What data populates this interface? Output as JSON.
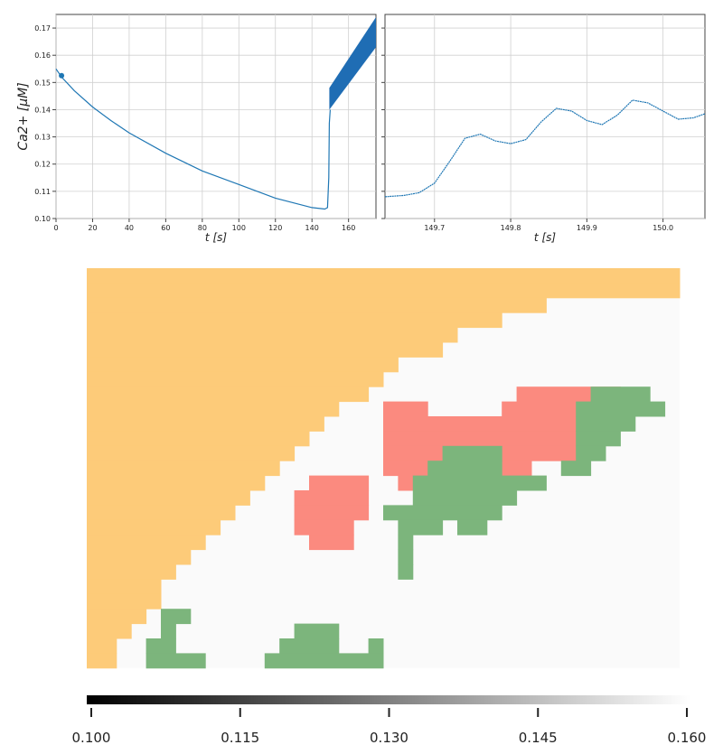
{
  "chart_data": [
    {
      "type": "line",
      "panel": "left",
      "xlabel": "t [s]",
      "ylabel": "Ca2+ [μM]",
      "xlim": [
        0,
        175
      ],
      "ylim": [
        0.1,
        0.175
      ],
      "xticks": [
        "0",
        "20",
        "40",
        "60",
        "80",
        "100",
        "120",
        "140",
        "160"
      ],
      "yticks": [
        "0.10",
        "0.11",
        "0.12",
        "0.13",
        "0.14",
        "0.15",
        "0.16",
        "0.17"
      ],
      "grid": true,
      "color": "#1f77b4",
      "x": [
        0,
        3,
        10,
        20,
        30,
        40,
        60,
        80,
        100,
        120,
        140,
        147,
        148.5,
        149.2,
        149.5,
        150
      ],
      "y": [
        0.155,
        0.152,
        0.147,
        0.141,
        0.136,
        0.1315,
        0.124,
        0.1175,
        0.1125,
        0.1075,
        0.104,
        0.1035,
        0.104,
        0.115,
        0.135,
        0.14
      ],
      "oscillation_band": {
        "x": [
          149.5,
          175
        ],
        "lower": [
          0.14,
          0.163
        ],
        "upper": [
          0.148,
          0.174
        ]
      },
      "marker": {
        "x": 3,
        "y": 0.1525
      }
    },
    {
      "type": "line",
      "panel": "right",
      "xlabel": "t [s]",
      "xlim": [
        149.635,
        150.055
      ],
      "ylim": [
        0.1,
        0.175
      ],
      "xticks": [
        "149.7",
        "149.8",
        "149.9",
        "150.0"
      ],
      "grid": true,
      "color": "#1f77b4",
      "x": [
        149.635,
        149.66,
        149.68,
        149.7,
        149.72,
        149.74,
        149.76,
        149.78,
        149.8,
        149.82,
        149.84,
        149.86,
        149.88,
        149.9,
        149.92,
        149.94,
        149.96,
        149.98,
        150.0,
        150.02,
        150.04,
        150.055
      ],
      "y": [
        0.108,
        0.1085,
        0.1095,
        0.113,
        0.121,
        0.1295,
        0.131,
        0.1285,
        0.1275,
        0.129,
        0.1355,
        0.1405,
        0.1395,
        0.136,
        0.1345,
        0.138,
        0.1435,
        0.1425,
        0.1395,
        0.1365,
        0.137,
        0.1385
      ]
    },
    {
      "type": "heatmap",
      "panel": "grid-map",
      "cols": 40,
      "rows": 27,
      "colors": {
        "orange": "#fdcb79",
        "red": "#fb8a7f",
        "green": "#7cb57c",
        "background": "#fafafa"
      },
      "orange_boundary_cols": [
        40,
        40,
        31,
        28,
        25,
        24,
        21,
        20,
        19,
        17,
        16,
        15,
        14,
        13,
        12,
        11,
        10,
        9,
        8,
        7,
        6,
        5,
        5,
        4,
        3,
        2,
        2
      ],
      "red_regions": [
        [
          [
            8,
            29,
            35
          ],
          [
            9,
            20,
            22
          ],
          [
            9,
            28,
            33
          ],
          [
            10,
            20,
            32
          ],
          [
            11,
            20,
            32
          ],
          [
            12,
            20,
            32
          ],
          [
            13,
            20,
            29
          ],
          [
            14,
            21,
            25
          ]
        ],
        [
          [
            14,
            15,
            18
          ],
          [
            15,
            14,
            18
          ],
          [
            16,
            14,
            18
          ],
          [
            17,
            14,
            17
          ],
          [
            18,
            15,
            17
          ]
        ]
      ],
      "green_regions": [
        [
          [
            8,
            34,
            37
          ],
          [
            9,
            33,
            38
          ],
          [
            10,
            33,
            36
          ],
          [
            11,
            33,
            35
          ],
          [
            12,
            33,
            34
          ],
          [
            13,
            32,
            33
          ]
        ],
        [
          [
            12,
            24,
            27
          ],
          [
            13,
            23,
            27
          ],
          [
            14,
            22,
            30
          ],
          [
            15,
            22,
            28
          ],
          [
            16,
            20,
            27
          ],
          [
            17,
            21,
            23
          ],
          [
            17,
            25,
            26
          ],
          [
            18,
            21,
            21
          ],
          [
            19,
            21,
            21
          ],
          [
            20,
            21,
            21
          ]
        ],
        [
          [
            23,
            5,
            6
          ],
          [
            24,
            5,
            5
          ],
          [
            25,
            4,
            5
          ],
          [
            26,
            4,
            7
          ]
        ],
        [
          [
            24,
            14,
            16
          ],
          [
            25,
            13,
            16
          ],
          [
            25,
            19,
            19
          ],
          [
            26,
            12,
            19
          ]
        ]
      ]
    },
    {
      "type": "colorbar",
      "range": [
        0.1,
        0.16
      ],
      "ticks": [
        "0.100",
        "0.115",
        "0.130",
        "0.145",
        "0.160"
      ]
    }
  ]
}
